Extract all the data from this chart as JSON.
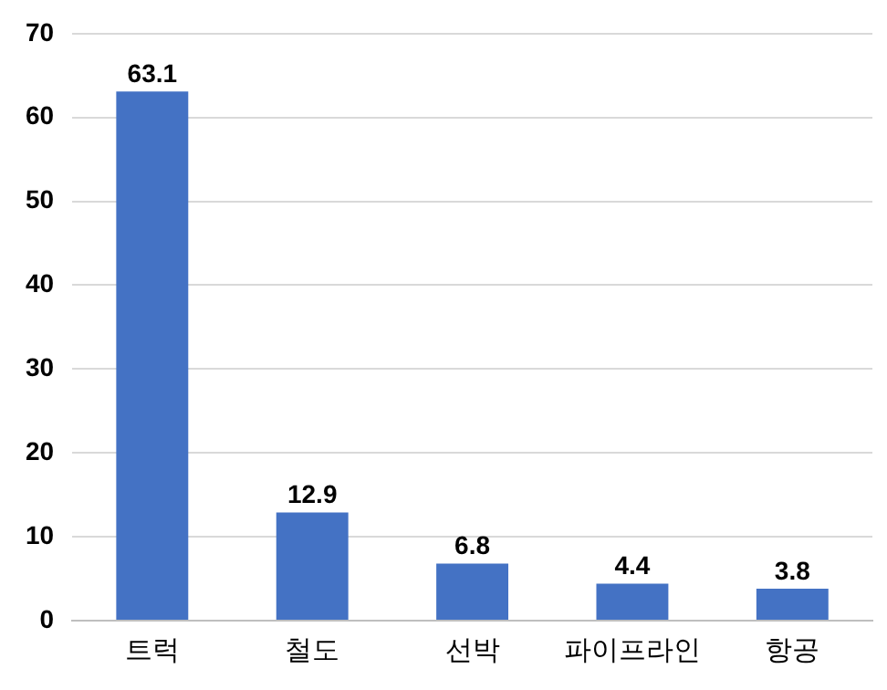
{
  "chart_data": {
    "type": "bar",
    "categories": [
      "트럭",
      "철도",
      "선박",
      "파이프라인",
      "항공"
    ],
    "values": [
      63.1,
      12.9,
      6.8,
      4.4,
      3.8
    ],
    "color": "#4472c4",
    "ylim": [
      0,
      70
    ],
    "yticks": [
      0,
      10,
      20,
      30,
      40,
      50,
      60,
      70
    ],
    "grid": "y",
    "legend": false,
    "data_labels": true
  }
}
